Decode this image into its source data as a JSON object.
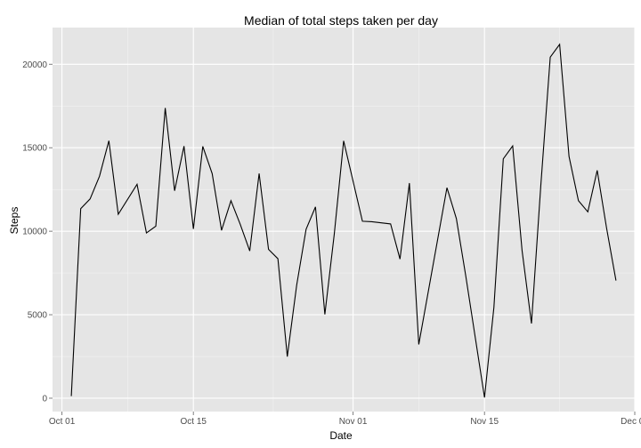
{
  "chart_data": {
    "type": "line",
    "title": "Median of total steps taken per day",
    "xlabel": "Date",
    "ylabel": "Steps",
    "x_ticks": [
      "Oct 01",
      "Oct 15",
      "Nov 01",
      "Nov 15",
      "Dec 01"
    ],
    "y_ticks": [
      "0",
      "5000",
      "10000",
      "15000",
      "20000"
    ],
    "xlim": [
      "2012-09-30",
      "2012-12-01"
    ],
    "ylim": [
      -800,
      22200
    ],
    "grid": true,
    "colors": {
      "panel": "#e5e5e5",
      "grid_major": "#ffffff",
      "grid_minor": "#f2f2f2",
      "line": "#000000"
    },
    "series": [
      {
        "x": [
          "2012-10-02",
          "2012-10-03",
          "2012-10-04",
          "2012-10-05",
          "2012-10-06",
          "2012-10-07",
          "2012-10-09",
          "2012-10-10",
          "2012-10-11",
          "2012-10-12",
          "2012-10-13",
          "2012-10-14",
          "2012-10-15",
          "2012-10-16",
          "2012-10-17",
          "2012-10-18",
          "2012-10-19",
          "2012-10-20",
          "2012-10-21",
          "2012-10-22",
          "2012-10-23",
          "2012-10-24",
          "2012-10-25",
          "2012-10-26",
          "2012-10-27",
          "2012-10-28",
          "2012-10-29",
          "2012-10-30",
          "2012-10-31",
          "2012-11-02",
          "2012-11-03",
          "2012-11-05",
          "2012-11-06",
          "2012-11-07",
          "2012-11-08",
          "2012-11-11",
          "2012-11-12",
          "2012-11-13",
          "2012-11-15",
          "2012-11-16",
          "2012-11-17",
          "2012-11-18",
          "2012-11-19",
          "2012-11-20",
          "2012-11-21",
          "2012-11-22",
          "2012-11-23",
          "2012-11-24",
          "2012-11-25",
          "2012-11-26",
          "2012-11-27",
          "2012-11-28",
          "2012-11-29"
        ],
        "values": [
          126,
          11352,
          11935,
          13294,
          15420,
          11015,
          12811,
          9900,
          10304,
          17382,
          12426,
          15098,
          10139,
          15084,
          13452,
          10056,
          11829,
          10395,
          8821,
          13460,
          8918,
          8355,
          2492,
          6778,
          10119,
          11458,
          5018,
          9819,
          15414,
          10600,
          10571,
          10439,
          8334,
          12883,
          3219,
          12608,
          10765,
          7336,
          41,
          5441,
          14339,
          15110,
          8841,
          4472,
          12787,
          20427,
          21194,
          14478,
          11834,
          11162,
          13646,
          10183,
          7047
        ]
      }
    ]
  }
}
